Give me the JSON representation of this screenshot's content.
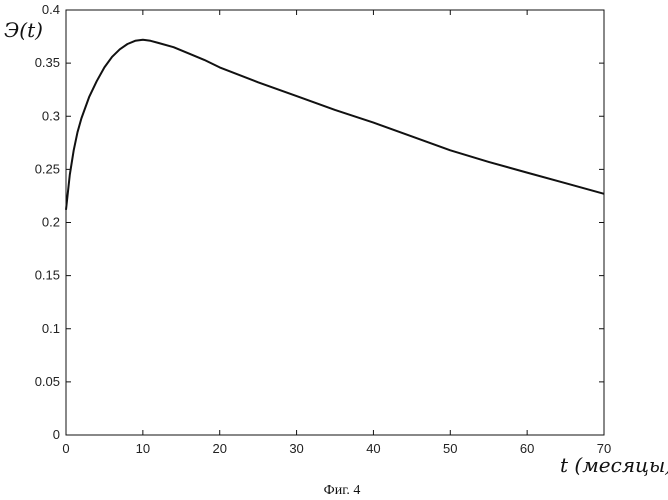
{
  "figure": {
    "caption": "Фиг. 4"
  },
  "chart_data": {
    "type": "line",
    "title": "",
    "xlabel": "t (месяцы)",
    "ylabel": "Э(t)",
    "xlim": [
      0,
      70
    ],
    "ylim": [
      0,
      0.4
    ],
    "xticks": [
      0,
      10,
      20,
      30,
      40,
      50,
      60,
      70
    ],
    "yticks": [
      0,
      0.05,
      0.1,
      0.15,
      0.2,
      0.25,
      0.3,
      0.35,
      0.4
    ],
    "xtick_labels": [
      "0",
      "10",
      "20",
      "30",
      "40",
      "50",
      "60",
      "70"
    ],
    "ytick_labels": [
      "0",
      "0.05",
      "0.1",
      "0.15",
      "0.2",
      "0.25",
      "0.3",
      "0.35",
      "0.4"
    ],
    "grid": false,
    "series": [
      {
        "color": "#111111",
        "x": [
          0,
          0.5,
          1,
          1.5,
          2,
          3,
          4,
          5,
          6,
          7,
          8,
          9,
          10,
          11,
          12,
          14,
          16,
          18,
          20,
          25,
          30,
          35,
          40,
          45,
          50,
          55,
          60,
          65,
          70
        ],
        "y": [
          0.212,
          0.245,
          0.268,
          0.285,
          0.298,
          0.318,
          0.333,
          0.346,
          0.356,
          0.363,
          0.368,
          0.371,
          0.372,
          0.371,
          0.369,
          0.365,
          0.359,
          0.353,
          0.346,
          0.332,
          0.319,
          0.306,
          0.294,
          0.281,
          0.268,
          0.257,
          0.247,
          0.237,
          0.227
        ]
      }
    ]
  }
}
